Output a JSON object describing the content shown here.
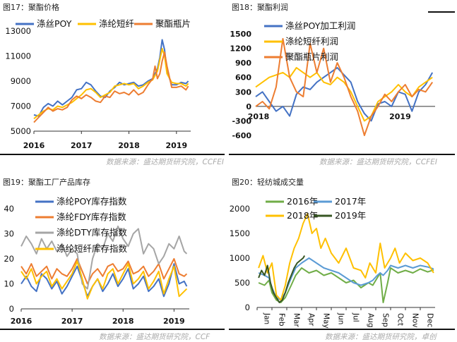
{
  "source_text": "数据来源：盛达期货研究院，CCFEI",
  "source_text_short": "数据来源：盛达期货研究院，CCF",
  "source_text_alt": "数据来源：盛达期货研究院，卓创",
  "colors": {
    "blue": "#4472C4",
    "yellow": "#FFC000",
    "orange": "#ED7D31",
    "gray": "#A5A5A5",
    "green": "#70AD47",
    "darkgreen": "#375623"
  },
  "chart_data": [
    {
      "title": "图17：聚酯价格",
      "type": "line",
      "ylim": [
        5000,
        13000
      ],
      "yticks": [
        "5000",
        "7000",
        "9000",
        "11000",
        "13000"
      ],
      "xticks": [
        "2016",
        "2017",
        "2018",
        "2019"
      ],
      "x_range": [
        2016.0,
        2019.3
      ],
      "series": [
        {
          "name": "涤丝POY",
          "color": "#4472C4",
          "x": [
            2016.0,
            2016.1,
            2016.2,
            2016.3,
            2016.4,
            2016.5,
            2016.6,
            2016.7,
            2016.8,
            2016.9,
            2017.0,
            2017.1,
            2017.2,
            2017.3,
            2017.4,
            2017.5,
            2017.6,
            2017.7,
            2017.8,
            2017.9,
            2018.0,
            2018.1,
            2018.2,
            2018.3,
            2018.4,
            2018.5,
            2018.6,
            2018.65,
            2018.7,
            2018.75,
            2018.8,
            2018.9,
            2019.0,
            2019.1,
            2019.2,
            2019.25
          ],
          "y": [
            6300,
            6200,
            6900,
            7200,
            7000,
            7400,
            7100,
            7400,
            7700,
            8300,
            8400,
            8900,
            8700,
            8200,
            7800,
            7700,
            8200,
            8500,
            8900,
            8700,
            8800,
            8900,
            8600,
            8700,
            9000,
            9200,
            10000,
            10900,
            12300,
            11500,
            9800,
            8700,
            8700,
            8900,
            8800,
            9000
          ]
        },
        {
          "name": "涤纶短纤",
          "color": "#FFC000",
          "x": [
            2016.0,
            2016.1,
            2016.2,
            2016.3,
            2016.4,
            2016.5,
            2016.6,
            2016.7,
            2016.8,
            2016.9,
            2017.0,
            2017.1,
            2017.2,
            2017.3,
            2017.4,
            2017.5,
            2017.6,
            2017.7,
            2017.8,
            2017.9,
            2018.0,
            2018.1,
            2018.2,
            2018.3,
            2018.4,
            2018.5,
            2018.6,
            2018.65,
            2018.7,
            2018.75,
            2018.8,
            2018.9,
            2019.0,
            2019.1,
            2019.2,
            2019.25
          ],
          "y": [
            6000,
            6300,
            6600,
            6800,
            6700,
            7000,
            6900,
            7100,
            7300,
            7600,
            7900,
            8300,
            8400,
            8100,
            7700,
            7900,
            8100,
            8600,
            8700,
            8800,
            8700,
            8800,
            8400,
            8600,
            8900,
            9100,
            9800,
            10700,
            11600,
            11000,
            9600,
            8900,
            8800,
            8800,
            8600,
            8800
          ]
        },
        {
          "name": "聚酯瓶片",
          "color": "#ED7D31",
          "x": [
            2016.0,
            2016.1,
            2016.2,
            2016.3,
            2016.4,
            2016.5,
            2016.6,
            2016.7,
            2016.8,
            2016.9,
            2017.0,
            2017.1,
            2017.2,
            2017.3,
            2017.4,
            2017.5,
            2017.6,
            2017.7,
            2017.8,
            2017.9,
            2018.0,
            2018.1,
            2018.2,
            2018.3,
            2018.4,
            2018.5,
            2018.55,
            2018.6,
            2018.65,
            2018.7,
            2018.75,
            2018.8,
            2018.9,
            2019.0,
            2019.1,
            2019.2,
            2019.25
          ],
          "y": [
            5700,
            6100,
            6500,
            6900,
            6600,
            6800,
            6700,
            6900,
            7500,
            7800,
            7600,
            7900,
            7700,
            7400,
            7300,
            7800,
            7700,
            8200,
            8000,
            8100,
            7900,
            8300,
            7900,
            8100,
            8700,
            9200,
            10200,
            9200,
            9600,
            10600,
            11300,
            10200,
            8500,
            8500,
            8600,
            8300,
            8600
          ]
        }
      ]
    },
    {
      "title": "图18：聚酯利润",
      "type": "line",
      "ylim": [
        -600,
        1500
      ],
      "yticks": [
        "-600",
        "-300",
        "0",
        "300",
        "600",
        "900",
        "1200",
        "1500"
      ],
      "xticks": [
        "2018",
        "2019"
      ],
      "x_range": [
        2018.0,
        2019.32
      ],
      "series": [
        {
          "name": "涤丝POY加工利润",
          "color": "#4472C4",
          "x": [
            2018.0,
            2018.05,
            2018.1,
            2018.15,
            2018.2,
            2018.25,
            2018.3,
            2018.35,
            2018.4,
            2018.45,
            2018.5,
            2018.55,
            2018.6,
            2018.65,
            2018.7,
            2018.75,
            2018.8,
            2018.85,
            2018.9,
            2018.95,
            2019.0,
            2019.05,
            2019.1,
            2019.15,
            2019.2,
            2019.25,
            2019.3
          ],
          "y": [
            200,
            300,
            100,
            -100,
            0,
            -200,
            250,
            400,
            350,
            500,
            600,
            700,
            800,
            650,
            500,
            100,
            -150,
            -300,
            50,
            100,
            0,
            300,
            250,
            -100,
            300,
            450,
            700
          ]
        },
        {
          "name": "涤纶短纤利润",
          "color": "#FFC000",
          "x": [
            2018.0,
            2018.05,
            2018.1,
            2018.15,
            2018.2,
            2018.25,
            2018.3,
            2018.35,
            2018.4,
            2018.45,
            2018.5,
            2018.55,
            2018.6,
            2018.65,
            2018.7,
            2018.75,
            2018.8,
            2018.85,
            2018.9,
            2018.95,
            2019.0,
            2019.05,
            2019.1,
            2019.15,
            2019.2,
            2019.25,
            2019.3
          ],
          "y": [
            400,
            500,
            600,
            650,
            700,
            600,
            800,
            700,
            600,
            700,
            500,
            450,
            600,
            500,
            300,
            0,
            -300,
            -200,
            100,
            200,
            300,
            450,
            300,
            200,
            400,
            500,
            600
          ]
        },
        {
          "name": "聚酯瓶片利润",
          "color": "#ED7D31",
          "x": [
            2018.0,
            2018.05,
            2018.1,
            2018.15,
            2018.2,
            2018.25,
            2018.3,
            2018.35,
            2018.4,
            2018.45,
            2018.5,
            2018.55,
            2018.6,
            2018.65,
            2018.7,
            2018.75,
            2018.8,
            2018.85,
            2018.9,
            2018.95,
            2019.0,
            2019.05,
            2019.1,
            2019.15,
            2019.2,
            2019.25,
            2019.3
          ],
          "y": [
            0,
            100,
            -50,
            400,
            1400,
            600,
            300,
            200,
            1300,
            700,
            1200,
            500,
            900,
            600,
            200,
            -100,
            -600,
            -200,
            0,
            250,
            100,
            300,
            450,
            200,
            350,
            300,
            500
          ]
        }
      ]
    },
    {
      "title": "图19：聚酯工厂产品库存",
      "type": "line",
      "ylim": [
        0,
        40
      ],
      "yticks": [
        "0",
        "10",
        "20",
        "30",
        "40"
      ],
      "xticks": [
        "2016",
        "2017",
        "2018",
        "2019"
      ],
      "x_range": [
        2016.0,
        2019.3
      ],
      "series": [
        {
          "name": "涤纶POY库存指数",
          "color": "#4472C4",
          "x": [
            2016.0,
            2016.1,
            2016.2,
            2016.3,
            2016.4,
            2016.5,
            2016.6,
            2016.7,
            2016.8,
            2016.9,
            2017.0,
            2017.1,
            2017.2,
            2017.3,
            2017.4,
            2017.5,
            2017.6,
            2017.7,
            2017.8,
            2017.9,
            2018.0,
            2018.1,
            2018.2,
            2018.3,
            2018.4,
            2018.5,
            2018.6,
            2018.7,
            2018.8,
            2018.9,
            2019.0,
            2019.1,
            2019.2,
            2019.25
          ],
          "y": [
            10,
            13,
            9,
            7,
            14,
            12,
            8,
            11,
            6,
            9,
            13,
            17,
            11,
            5,
            9,
            12,
            7,
            10,
            14,
            9,
            12,
            16,
            8,
            10,
            13,
            7,
            9,
            12,
            5,
            10,
            18,
            10,
            11,
            9
          ]
        },
        {
          "name": "涤纶FDY库存指数",
          "color": "#ED7D31",
          "x": [
            2016.0,
            2016.1,
            2016.2,
            2016.3,
            2016.4,
            2016.5,
            2016.6,
            2016.7,
            2016.8,
            2016.9,
            2017.0,
            2017.1,
            2017.2,
            2017.3,
            2017.4,
            2017.5,
            2017.6,
            2017.7,
            2017.8,
            2017.9,
            2018.0,
            2018.1,
            2018.2,
            2018.3,
            2018.4,
            2018.5,
            2018.6,
            2018.7,
            2018.8,
            2018.9,
            2019.0,
            2019.1,
            2019.2,
            2019.25
          ],
          "y": [
            17,
            14,
            18,
            13,
            15,
            17,
            12,
            16,
            14,
            13,
            16,
            20,
            15,
            10,
            14,
            16,
            13,
            17,
            18,
            15,
            16,
            19,
            14,
            15,
            17,
            13,
            15,
            18,
            12,
            16,
            20,
            14,
            13,
            14
          ]
        },
        {
          "name": "涤纶DTY库存指数",
          "color": "#A5A5A5",
          "x": [
            2016.0,
            2016.1,
            2016.2,
            2016.3,
            2016.4,
            2016.5,
            2016.6,
            2016.7,
            2016.8,
            2016.9,
            2017.0,
            2017.1,
            2017.2,
            2017.3,
            2017.4,
            2017.5,
            2017.6,
            2017.7,
            2017.8,
            2017.9,
            2018.0,
            2018.1,
            2018.2,
            2018.3,
            2018.4,
            2018.5,
            2018.6,
            2018.7,
            2018.8,
            2018.9,
            2019.0,
            2019.1,
            2019.2,
            2019.25
          ],
          "y": [
            25,
            29,
            26,
            22,
            28,
            24,
            27,
            23,
            26,
            21,
            24,
            22,
            10,
            8,
            20,
            26,
            24,
            30,
            27,
            33,
            28,
            25,
            30,
            32,
            22,
            26,
            24,
            18,
            21,
            26,
            24,
            29,
            23,
            22
          ]
        },
        {
          "name": "涤纶短纤库存指数",
          "color": "#FFC000",
          "x": [
            2016.0,
            2016.1,
            2016.2,
            2016.3,
            2016.4,
            2016.5,
            2016.6,
            2016.7,
            2016.8,
            2016.9,
            2017.0,
            2017.1,
            2017.2,
            2017.3,
            2017.4,
            2017.5,
            2017.6,
            2017.7,
            2017.8,
            2017.9,
            2018.0,
            2018.1,
            2018.2,
            2018.3,
            2018.4,
            2018.5,
            2018.6,
            2018.7,
            2018.8,
            2018.9,
            2019.0,
            2019.1,
            2019.2,
            2019.25
          ],
          "y": [
            15,
            12,
            16,
            10,
            13,
            15,
            9,
            12,
            8,
            11,
            14,
            19,
            12,
            4,
            9,
            12,
            8,
            14,
            16,
            10,
            14,
            18,
            10,
            12,
            15,
            8,
            11,
            15,
            6,
            12,
            17,
            5,
            7,
            8
          ]
        }
      ]
    },
    {
      "title": "图20：轻纺城成交量",
      "type": "line",
      "ylim": [
        0,
        2000
      ],
      "yticks": [
        "0",
        "500",
        "1000",
        "1500",
        "2000"
      ],
      "xticks": [
        "Jan",
        "Feb",
        "Mar",
        "Apr",
        "May",
        "Jun",
        "Jul",
        "Aug",
        "Sep",
        "Oct",
        "Nov",
        "Dec"
      ],
      "x_range": [
        0,
        12
      ],
      "series": [
        {
          "name": "2016年",
          "color": "#70AD47",
          "x": [
            0.1,
            0.5,
            0.8,
            1.0,
            1.3,
            1.6,
            1.9,
            2.3,
            2.6,
            3.0,
            3.5,
            4.0,
            4.5,
            5.0,
            5.5,
            6.0,
            6.5,
            7.0,
            7.5,
            7.8,
            8.1,
            8.3,
            8.5,
            8.8,
            9.0,
            9.5,
            10.0,
            10.5,
            11.0,
            11.5,
            11.9
          ],
          "y": [
            500,
            450,
            550,
            300,
            150,
            100,
            200,
            450,
            650,
            800,
            700,
            750,
            650,
            700,
            600,
            500,
            550,
            400,
            500,
            450,
            600,
            700,
            100,
            500,
            800,
            700,
            750,
            700,
            780,
            720,
            760
          ]
        },
        {
          "name": "2017年",
          "color": "#5B9BD5",
          "x": [
            0.1,
            0.5,
            0.8,
            1.0,
            1.3,
            1.6,
            1.9,
            2.3,
            2.6,
            3.0,
            3.5,
            4.0,
            4.5,
            5.0,
            5.5,
            6.0,
            6.5,
            7.0,
            7.5,
            7.8,
            8.1,
            8.3,
            8.5,
            8.8,
            9.0,
            9.5,
            10.0,
            10.5,
            11.0,
            11.5,
            11.9
          ],
          "y": [
            700,
            650,
            600,
            400,
            200,
            150,
            300,
            600,
            800,
            900,
            1000,
            900,
            800,
            750,
            700,
            600,
            500,
            450,
            500,
            550,
            650,
            700,
            650,
            750,
            850,
            800,
            850,
            800,
            850,
            820,
            780
          ]
        },
        {
          "name": "2018年",
          "color": "#FFC000",
          "x": [
            0.1,
            0.4,
            0.7,
            1.0,
            1.3,
            1.6,
            1.9,
            2.2,
            2.5,
            2.8,
            3.1,
            3.4,
            3.7,
            4.0,
            4.3,
            4.6,
            5.0,
            5.5,
            6.0,
            6.5,
            7.0,
            7.3,
            7.6,
            8.0,
            8.3,
            8.6,
            9.0,
            9.3,
            9.6,
            10.0,
            10.5,
            11.0,
            11.5,
            11.9
          ],
          "y": [
            800,
            1050,
            700,
            900,
            250,
            150,
            450,
            900,
            1200,
            1400,
            1700,
            1900,
            1500,
            1600,
            1200,
            1400,
            1100,
            900,
            1200,
            800,
            750,
            600,
            900,
            700,
            1300,
            800,
            1000,
            1200,
            900,
            1100,
            950,
            1000,
            900,
            700
          ]
        },
        {
          "name": "2019年",
          "color": "#375623",
          "x": [
            0.1,
            0.3,
            0.5,
            0.7,
            0.9,
            1.1,
            1.3,
            1.5,
            1.7,
            1.9,
            2.1,
            2.3,
            2.5,
            2.7,
            2.9,
            3.1,
            3.2
          ],
          "y": [
            600,
            750,
            650,
            850,
            500,
            300,
            200,
            100,
            150,
            300,
            500,
            650,
            800,
            900,
            950,
            1000,
            1050
          ]
        }
      ]
    }
  ]
}
